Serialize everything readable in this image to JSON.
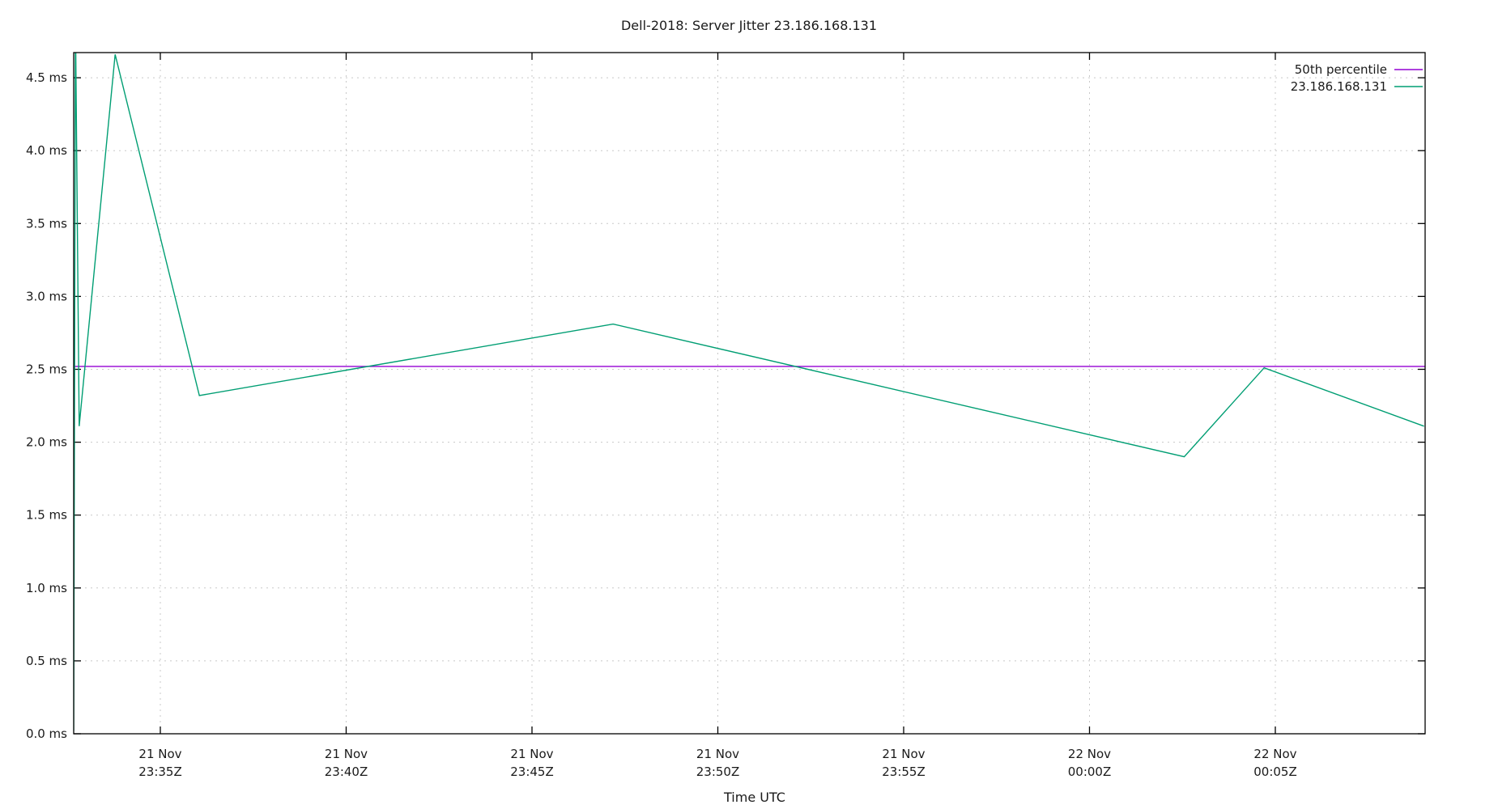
{
  "chart_data": {
    "type": "line",
    "title": "Dell-2018: Server Jitter 23.186.168.131",
    "xlabel": "Time UTC",
    "ylabel": "",
    "ylim": [
      0,
      4.7
    ],
    "grid": true,
    "legend_position": "top-right",
    "y_ticks": [
      "0.0 ms",
      "0.5 ms",
      "1.0 ms",
      "1.5 ms",
      "2.0 ms",
      "2.5 ms",
      "3.0 ms",
      "3.5 ms",
      "4.0 ms",
      "4.5 ms"
    ],
    "x_ticks": [
      {
        "date": "21 Nov",
        "time": "23:35Z"
      },
      {
        "date": "21 Nov",
        "time": "23:40Z"
      },
      {
        "date": "21 Nov",
        "time": "23:45Z"
      },
      {
        "date": "21 Nov",
        "time": "23:50Z"
      },
      {
        "date": "21 Nov",
        "time": "23:55Z"
      },
      {
        "date": "22 Nov",
        "time": "00:00Z"
      },
      {
        "date": "22 Nov",
        "time": "00:05Z"
      }
    ],
    "x_range": [
      "21 Nov 23:32:40Z",
      "22 Nov 00:09:02Z"
    ],
    "series": [
      {
        "name": "50th percentile",
        "color": "#9400d3",
        "x": [
          "21 Nov 23:32:40Z",
          "22 Nov 00:09:02Z"
        ],
        "values": [
          2.52,
          2.52
        ]
      },
      {
        "name": "23.186.168.131",
        "color": "#009e73",
        "x": [
          "21 Nov 23:32:40Z",
          "21 Nov 23:32:43Z",
          "21 Nov 23:32:49Z",
          "21 Nov 23:33:47Z",
          "21 Nov 23:36:03Z",
          "21 Nov 23:47:11Z",
          "22 Nov 00:02:33Z",
          "22 Nov 00:04:42Z",
          "22 Nov 00:09:00Z"
        ],
        "values": [
          0.02,
          4.9,
          2.11,
          4.66,
          2.32,
          2.81,
          1.9,
          2.51,
          2.11
        ]
      }
    ]
  },
  "legend": [
    {
      "label": "50th percentile",
      "color": "#9400d3"
    },
    {
      "label": "23.186.168.131",
      "color": "#009e73"
    }
  ]
}
